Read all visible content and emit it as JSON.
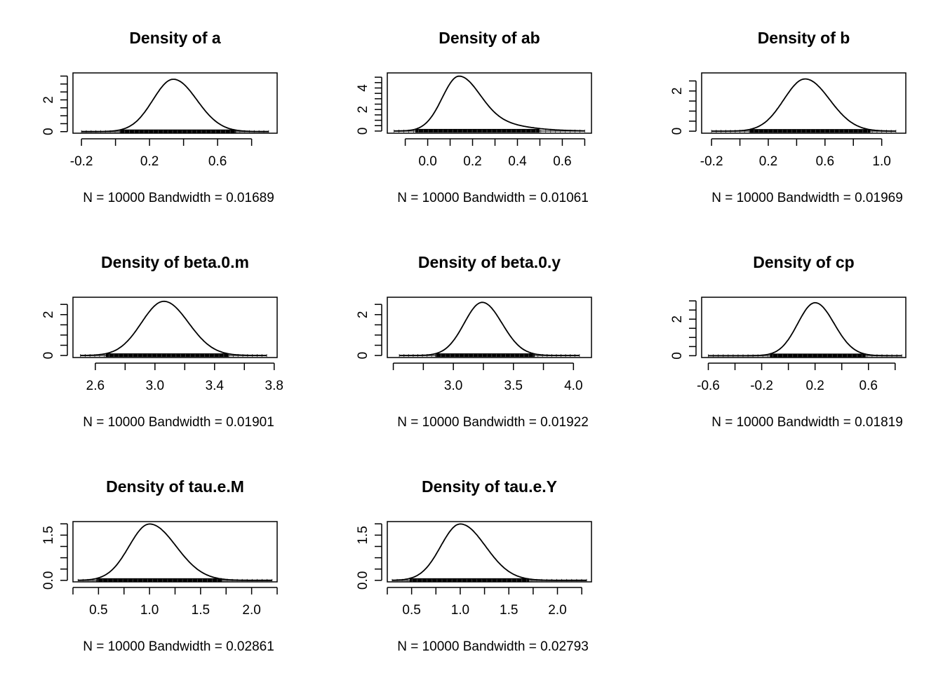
{
  "chart_data": [
    {
      "type": "line",
      "title": "Density of a",
      "xlabel": "N = 10000   Bandwidth = 0.01689",
      "xlim": [
        -0.25,
        0.95
      ],
      "ylim": [
        -0.1,
        3.7
      ],
      "xticks": [
        -0.2,
        0.2,
        0.6
      ],
      "yticks": [
        0.0,
        2.0
      ],
      "mean": 0.34,
      "sd": 0.12,
      "peak": 3.3,
      "skew": 0.3,
      "rug": [
        -0.2,
        0.9
      ]
    },
    {
      "type": "line",
      "title": "Density of ab",
      "xlabel": "N = 10000   Bandwidth = 0.01061",
      "xlim": [
        -0.18,
        0.73
      ],
      "ylim": [
        -0.2,
        5.4
      ],
      "xticks": [
        0.0,
        0.2,
        0.4,
        0.6
      ],
      "yticks": [
        0,
        2,
        4
      ],
      "mean": 0.14,
      "sd": 0.075,
      "peak": 5.1,
      "skew": 1.4,
      "rug": [
        -0.15,
        0.7
      ]
    },
    {
      "type": "line",
      "title": "Density of b",
      "xlabel": "N = 10000   Bandwidth = 0.01969",
      "xlim": [
        -0.27,
        1.17
      ],
      "ylim": [
        -0.1,
        2.9
      ],
      "xticks": [
        -0.2,
        0.2,
        0.6,
        1.0
      ],
      "yticks": [
        0.0,
        2.0
      ],
      "mean": 0.46,
      "sd": 0.15,
      "peak": 2.6,
      "skew": 0.3,
      "rug": [
        -0.2,
        1.1
      ]
    },
    {
      "type": "line",
      "title": "Density of beta.0.m",
      "xlabel": "N = 10000   Bandwidth = 0.01901",
      "xlim": [
        2.45,
        3.82
      ],
      "ylim": [
        -0.1,
        2.85
      ],
      "xticks": [
        2.6,
        3.0,
        3.4,
        3.8
      ],
      "yticks": [
        0.0,
        2.0
      ],
      "mean": 3.06,
      "sd": 0.15,
      "peak": 2.65,
      "skew": 0.2,
      "rug": [
        2.5,
        3.75
      ]
    },
    {
      "type": "line",
      "title": "Density of beta.0.y",
      "xlabel": "N = 10000   Bandwidth = 0.01922",
      "xlim": [
        2.45,
        4.15
      ],
      "ylim": [
        -0.1,
        2.85
      ],
      "xticks": [
        3.0,
        3.5,
        4.0
      ],
      "yticks": [
        0.0,
        2.0
      ],
      "mean": 3.24,
      "sd": 0.15,
      "peak": 2.6,
      "skew": 0.2,
      "rug": [
        2.55,
        4.05
      ]
    },
    {
      "type": "line",
      "title": "Density of cp",
      "xlabel": "N = 10000   Bandwidth = 0.01819",
      "xlim": [
        -0.65,
        0.88
      ],
      "ylim": [
        -0.1,
        3.2
      ],
      "xticks": [
        -0.6,
        -0.2,
        0.2,
        0.6
      ],
      "yticks": [
        0.0,
        2.0
      ],
      "mean": 0.2,
      "sd": 0.13,
      "peak": 2.9,
      "skew": 0.2,
      "rug": [
        -0.6,
        0.85
      ]
    },
    {
      "type": "line",
      "title": "Density of tau.e.M",
      "xlabel": "N = 10000   Bandwidth = 0.02861",
      "xlim": [
        0.25,
        2.25
      ],
      "ylim": [
        -0.05,
        1.95
      ],
      "xticks": [
        0.5,
        1.0,
        1.5,
        2.0
      ],
      "yticks": [
        0.0,
        1.5
      ],
      "mean": 1.0,
      "sd": 0.2,
      "peak": 1.87,
      "skew": 0.6,
      "rug": [
        0.3,
        2.2
      ]
    },
    {
      "type": "line",
      "title": "Density of tau.e.Y",
      "xlabel": "N = 10000   Bandwidth = 0.02793",
      "xlim": [
        0.25,
        2.35
      ],
      "ylim": [
        -0.05,
        1.95
      ],
      "xticks": [
        0.5,
        1.0,
        1.5,
        2.0
      ],
      "yticks": [
        0.0,
        1.5
      ],
      "mean": 1.0,
      "sd": 0.2,
      "peak": 1.87,
      "skew": 0.6,
      "rug": [
        0.3,
        2.3
      ]
    }
  ]
}
